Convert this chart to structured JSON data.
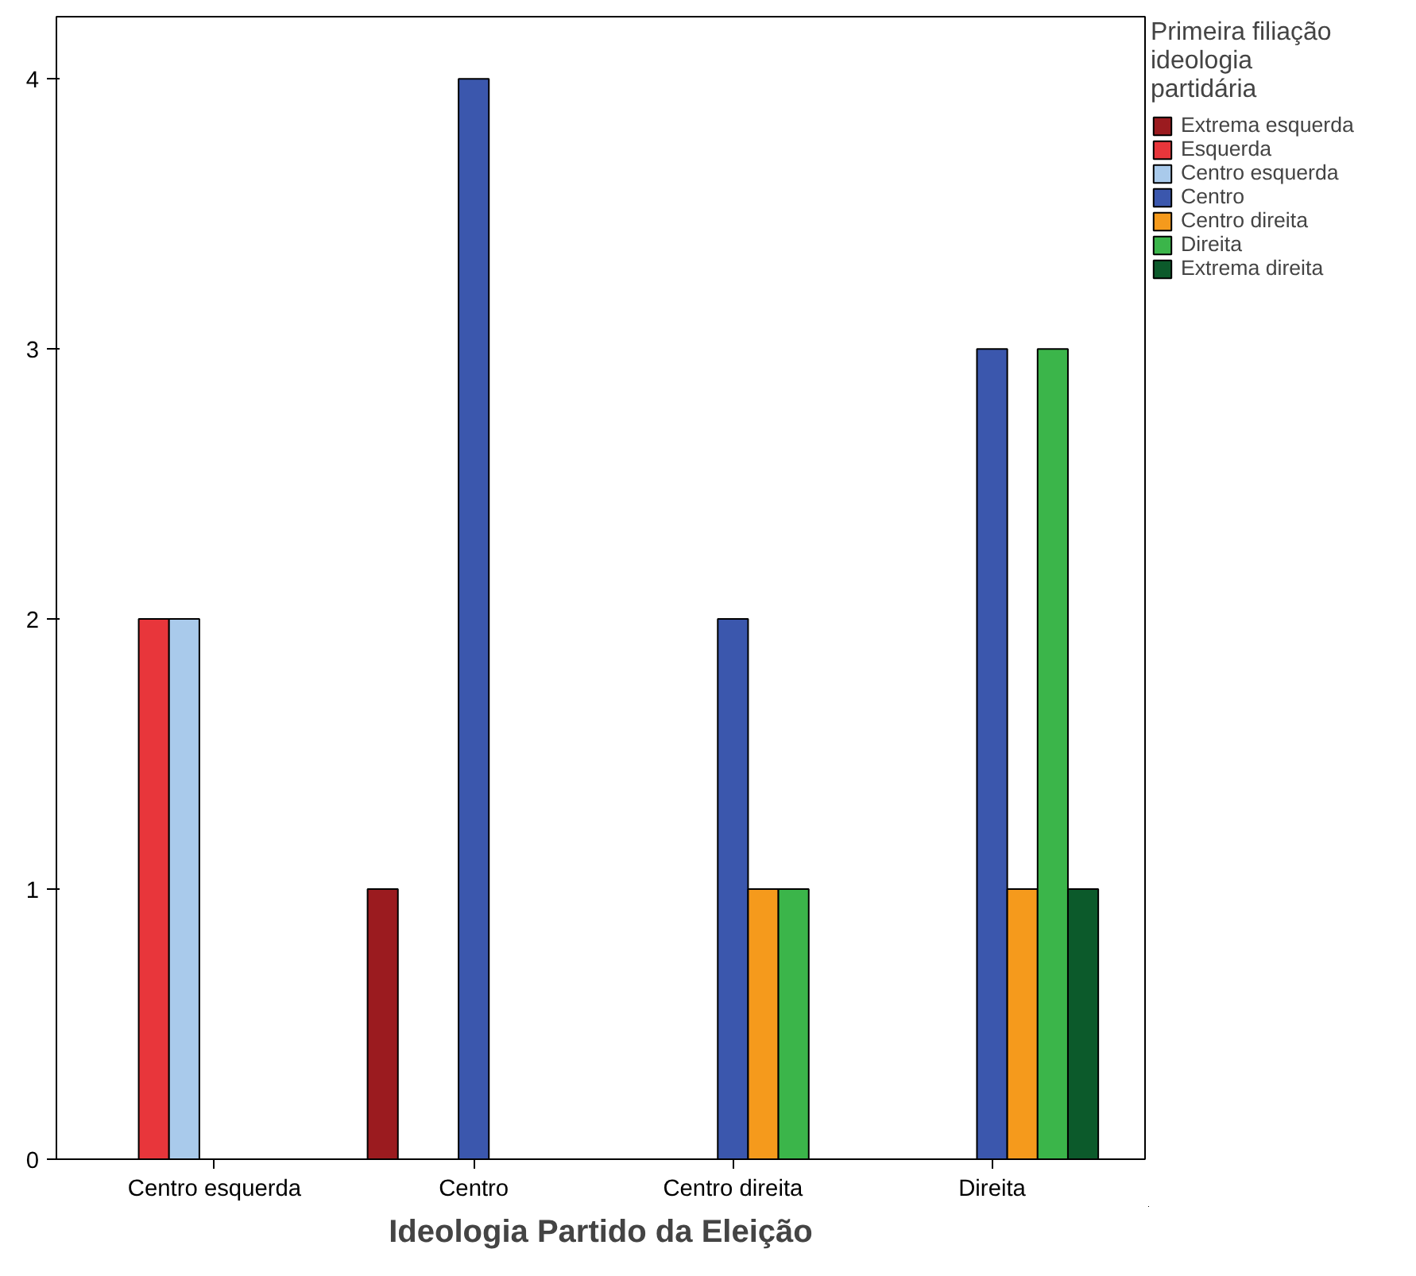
{
  "chart_data": {
    "type": "bar",
    "xlabel": "Ideologia Partido da Eleição",
    "legend_title": "Primeira filiação\nideologia\npartidária",
    "categories": [
      "Centro esquerda",
      "Centro",
      "Centro direita",
      "Direita"
    ],
    "series": [
      {
        "name": "Extrema esquerda",
        "color": "#9b1b1f",
        "values": [
          null,
          1,
          null,
          null
        ]
      },
      {
        "name": "Esquerda",
        "color": "#e8363b",
        "values": [
          2,
          null,
          null,
          null
        ]
      },
      {
        "name": "Centro esquerda",
        "color": "#a9caeb",
        "values": [
          2,
          null,
          null,
          null
        ]
      },
      {
        "name": "Centro",
        "color": "#3b57ad",
        "values": [
          null,
          4,
          2,
          3
        ]
      },
      {
        "name": "Centro direita",
        "color": "#f59a1c",
        "values": [
          null,
          null,
          1,
          1
        ]
      },
      {
        "name": "Direita",
        "color": "#3bb54a",
        "values": [
          null,
          null,
          1,
          3
        ]
      },
      {
        "name": "Extrema direita",
        "color": "#0c5a2b",
        "values": [
          null,
          null,
          null,
          1
        ]
      }
    ],
    "ylim": [
      0,
      4.23
    ],
    "yticks": [
      0,
      1,
      2,
      3,
      4
    ],
    "grid": false,
    "legend": "right"
  }
}
